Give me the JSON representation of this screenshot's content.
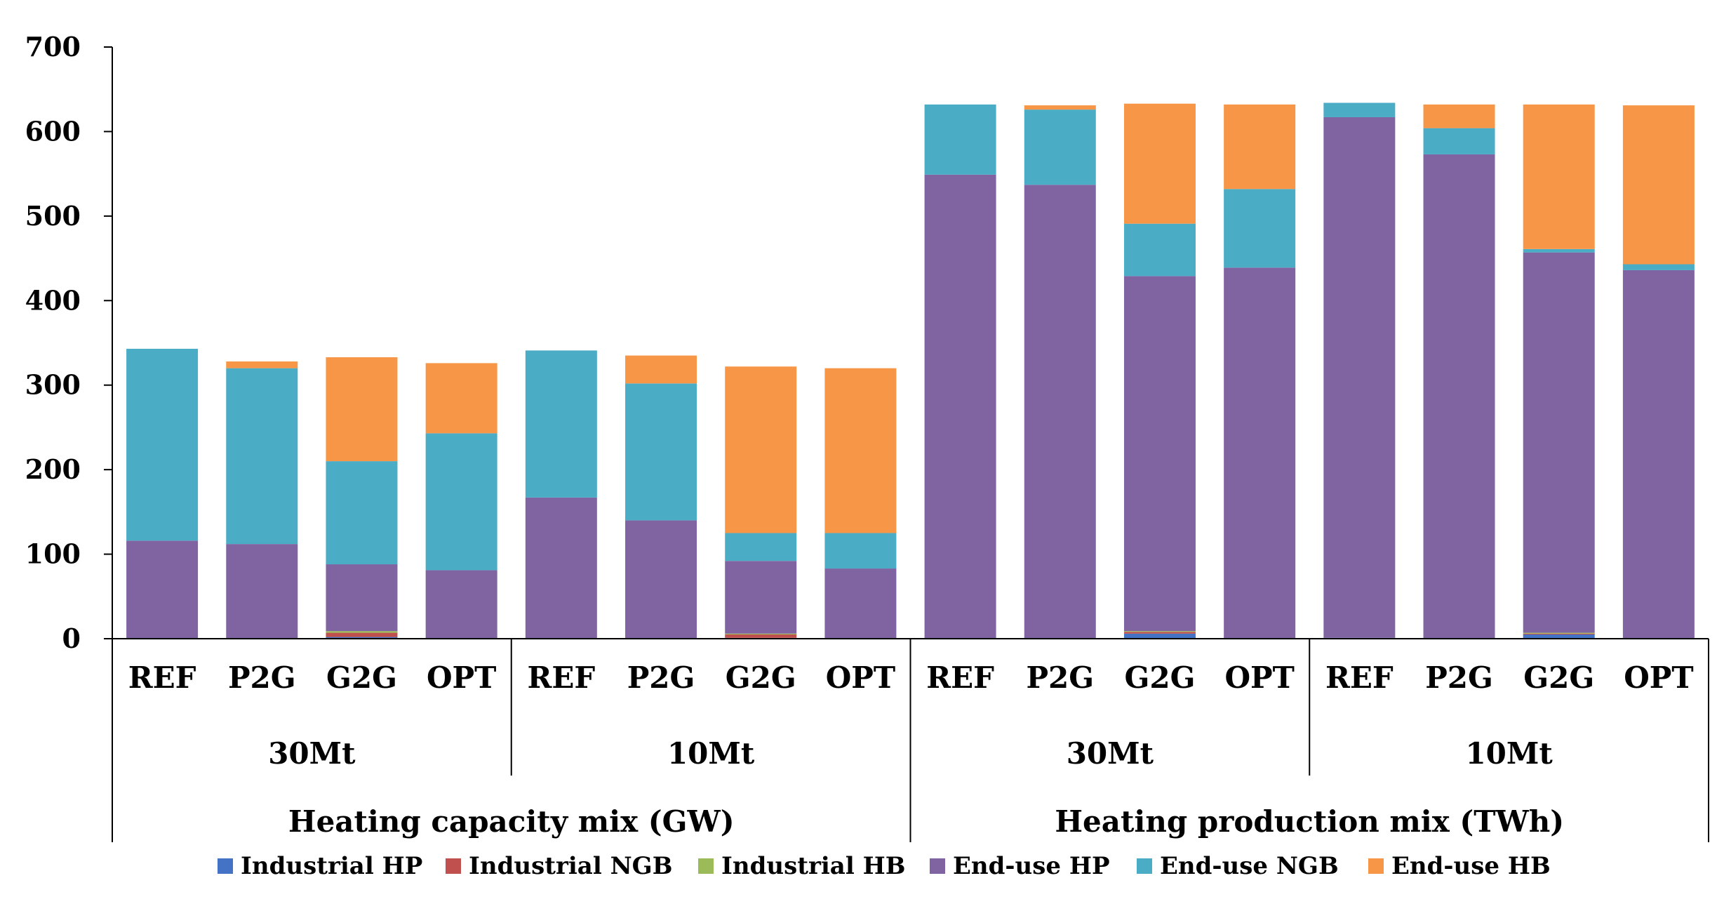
{
  "chart_data": {
    "type": "bar",
    "stacked": true,
    "title": "",
    "ylim": [
      0,
      700
    ],
    "yticks": [
      0,
      100,
      200,
      300,
      400,
      500,
      600,
      700
    ],
    "grid": false,
    "legend_position": "bottom",
    "sections": [
      {
        "label": "Heating capacity mix (GW)",
        "groups": [
          "30Mt",
          "10Mt"
        ]
      },
      {
        "label": "Heating production mix (TWh)",
        "groups": [
          "30Mt",
          "10Mt"
        ]
      }
    ],
    "groups": [
      "30Mt",
      "10Mt",
      "30Mt",
      "10Mt"
    ],
    "categories": [
      "REF",
      "P2G",
      "G2G",
      "OPT",
      "REF",
      "P2G",
      "G2G",
      "OPT",
      "REF",
      "P2G",
      "G2G",
      "OPT",
      "REF",
      "P2G",
      "G2G",
      "OPT"
    ],
    "series": [
      {
        "name": "Industrial HP",
        "color": "#4472c4",
        "values": [
          0,
          0,
          2,
          0,
          0,
          0,
          1,
          0,
          0,
          0,
          6,
          0,
          1,
          0,
          5,
          0
        ]
      },
      {
        "name": "Industrial NGB",
        "color": "#c0504d",
        "values": [
          0,
          0,
          5,
          0,
          0,
          0,
          4,
          0,
          0,
          0,
          2,
          0,
          0,
          0,
          1,
          0
        ]
      },
      {
        "name": "Industrial HB",
        "color": "#9bbb59",
        "values": [
          0,
          0,
          2,
          0,
          0,
          0,
          1,
          0,
          0,
          0,
          1,
          0,
          0,
          0,
          1,
          0
        ]
      },
      {
        "name": "End-use HP",
        "color": "#8064a2",
        "values": [
          116,
          112,
          79,
          81,
          167,
          140,
          86,
          83,
          549,
          537,
          420,
          439,
          616,
          573,
          450,
          436
        ]
      },
      {
        "name": "End-use NGB",
        "color": "#4bacc6",
        "values": [
          227,
          208,
          122,
          162,
          174,
          162,
          33,
          42,
          83,
          89,
          62,
          93,
          17,
          31,
          4,
          7
        ]
      },
      {
        "name": "End-use HB",
        "color": "#f79646",
        "values": [
          0,
          8,
          123,
          83,
          0,
          33,
          197,
          195,
          0,
          5,
          142,
          100,
          0,
          28,
          171,
          188
        ]
      }
    ]
  }
}
